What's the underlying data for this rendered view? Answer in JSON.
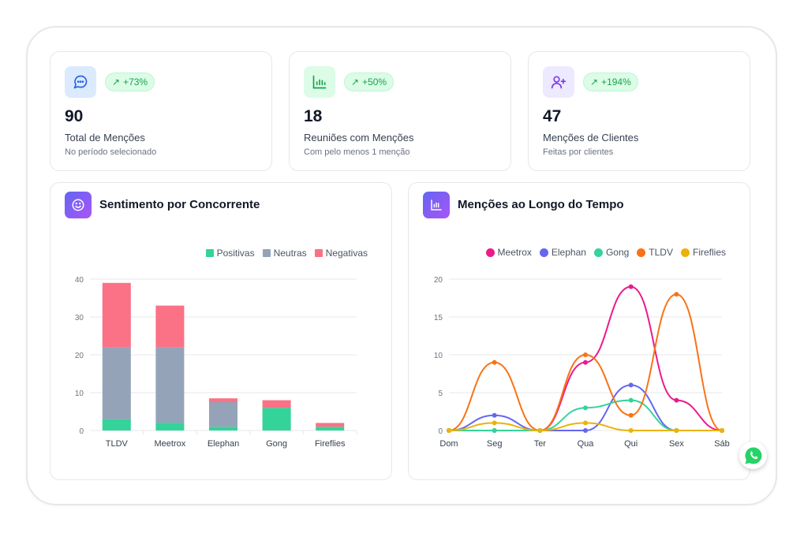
{
  "stats": [
    {
      "icon": "chat-bubble-icon",
      "badge": "+73%",
      "value": "90",
      "label": "Total de Menções",
      "sub": "No período selecionado",
      "accent": "#2563eb"
    },
    {
      "icon": "bar-chart-icon",
      "badge": "+50%",
      "value": "18",
      "label": "Reuniões com Menções",
      "sub": "Com pelo menos 1 menção",
      "accent": "#16a34a"
    },
    {
      "icon": "users-icon",
      "badge": "+194%",
      "value": "47",
      "label": "Menções de Clientes",
      "sub": "Feitas por clientes",
      "accent": "#7c3aed"
    }
  ],
  "sentiment_panel": {
    "title": "Sentimento por Concorrente",
    "icon": "smile-icon"
  },
  "timeline_panel": {
    "title": "Menções ao Longo do Tempo",
    "icon": "chart-icon"
  },
  "chart_data": [
    {
      "type": "bar",
      "stacked": true,
      "categories": [
        "TLDV",
        "Meetrox",
        "Elephan",
        "Gong",
        "Fireflies"
      ],
      "series": [
        {
          "name": "Positivas",
          "values": [
            3,
            2,
            1,
            6,
            1
          ],
          "color": "#34d399"
        },
        {
          "name": "Neutras",
          "values": [
            19,
            20,
            6.5,
            0,
            0
          ],
          "color": "#94a3b8"
        },
        {
          "name": "Negativas",
          "values": [
            17,
            11,
            1,
            2,
            1
          ],
          "color": "#fb7185"
        }
      ],
      "ylim": [
        0,
        40
      ],
      "yticks": [
        0,
        10,
        20,
        30,
        40
      ],
      "legend": "top-right",
      "grid": true
    },
    {
      "type": "line",
      "smooth": true,
      "x": [
        "Dom",
        "Seg",
        "Ter",
        "Qua",
        "Qui",
        "Sex",
        "Sáb"
      ],
      "series": [
        {
          "name": "Meetrox",
          "values": [
            0,
            0,
            0,
            9,
            19,
            4,
            0
          ],
          "color": "#ec1a8b"
        },
        {
          "name": "Elephan",
          "values": [
            0,
            2,
            0,
            0,
            6,
            0,
            0
          ],
          "color": "#6366f1"
        },
        {
          "name": "Gong",
          "values": [
            0,
            0,
            0,
            3,
            4,
            0,
            0
          ],
          "color": "#34d399"
        },
        {
          "name": "TLDV",
          "values": [
            0,
            9,
            0,
            10,
            2,
            18,
            0
          ],
          "color": "#f97316"
        },
        {
          "name": "Fireflies",
          "values": [
            0,
            1,
            0,
            1,
            0,
            0,
            0
          ],
          "color": "#eab308"
        }
      ],
      "ylim": [
        0,
        20
      ],
      "yticks": [
        0,
        5,
        10,
        15,
        20
      ],
      "legend": "top-right",
      "grid": true
    }
  ],
  "whatsapp": {
    "icon": "whatsapp-icon",
    "color": "#25d366"
  }
}
